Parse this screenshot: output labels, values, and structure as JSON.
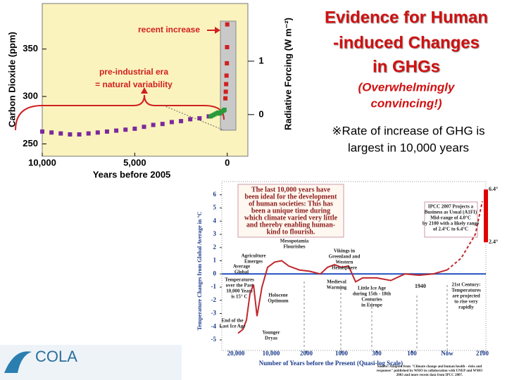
{
  "slide": {
    "title_lines": [
      "Evidence for Human",
      "-induced Changes",
      "in GHGs"
    ],
    "subtitle_lines": [
      "(Overwhelmingly",
      "convincing!)"
    ],
    "note_lines": [
      "※Rate of increase of GHG is",
      "largest in 10,000 years"
    ],
    "logo": "COLA"
  },
  "chart_data": [
    {
      "type": "scatter",
      "xlabel": "Years before 2005",
      "ylabel": "Carbon Dioxide (ppm)",
      "y2label": "Radiative Forcing (W m⁻²)",
      "xlim": [
        10000,
        -1000
      ],
      "ylim": [
        237,
        398
      ],
      "y2lim": [
        -0.78,
        2.08
      ],
      "xticks": [
        {
          "value": 10000,
          "label": "10,000"
        },
        {
          "value": 5000,
          "label": "5,000"
        },
        0
      ],
      "yticks": [
        250,
        300,
        350
      ],
      "y2ticks": [
        0,
        1
      ],
      "annotations": [
        [
          "recent increase"
        ],
        [
          "pre-industrial era",
          "= natural variability"
        ]
      ],
      "series": [
        {
          "color": "#7a2a9a",
          "x": [
            10000,
            9500,
            9000,
            8500,
            8000,
            7500,
            7000,
            6500,
            6000,
            5500,
            5000,
            4500,
            4000,
            3500,
            3000,
            2500,
            2000,
            1500,
            1000
          ],
          "values": [
            263,
            262,
            261,
            260,
            260,
            261,
            262,
            263,
            264,
            265,
            266,
            268,
            270,
            271,
            273,
            274,
            276,
            277,
            279
          ]
        },
        {
          "color": "#2a9a3a",
          "x": [
            900,
            800,
            700,
            600,
            500,
            400,
            300,
            200,
            150
          ],
          "values": [
            279,
            280,
            281,
            282,
            283,
            282,
            284,
            285,
            286
          ]
        },
        {
          "color": "#d02020",
          "x": [
            100,
            80,
            60,
            40,
            20,
            10,
            0
          ],
          "values": [
            298,
            305,
            313,
            322,
            335,
            352,
            376
          ]
        }
      ]
    },
    {
      "type": "line",
      "xlabel": "Number of Years before the Present (Quasi-log Scale)",
      "ylabel": "Temperature Changes from Global Average in °C",
      "xlim": [
        -0.4,
        7.1
      ],
      "ylim": [
        -5.8,
        7
      ],
      "xticks": [
        {
          "value": 0,
          "label": "20,000"
        },
        {
          "value": 1,
          "label": "10,000"
        },
        {
          "value": 2,
          "label": "2000"
        },
        {
          "value": 3,
          "label": "1000"
        },
        {
          "value": 4,
          "label": "300"
        },
        {
          "value": 5,
          "label": "100"
        },
        {
          "value": 6,
          "label": "Now"
        },
        {
          "value": 7,
          "label": "2100"
        }
      ],
      "yticks": [
        -5,
        -4,
        -3,
        -2,
        -1,
        0,
        1,
        2,
        3,
        4,
        5,
        6
      ],
      "series": [
        {
          "color": "#c0282d",
          "dashed": false,
          "x": [
            0.06,
            0.2,
            0.3,
            0.4,
            0.5,
            0.6,
            0.74,
            0.9,
            1.1,
            1.3,
            1.5,
            1.8,
            2.1,
            2.4,
            2.6,
            2.8,
            3.0,
            3.2,
            3.4,
            3.6,
            4.0,
            4.4,
            4.8,
            5.2,
            5.6,
            6.0
          ],
          "values": [
            -4.5,
            -4.2,
            -3.5,
            -1.5,
            -0.8,
            -3.2,
            -1.0,
            0.5,
            0.9,
            1.0,
            0.6,
            0.3,
            0.2,
            0.0,
            0.5,
            0.7,
            0.5,
            0.6,
            -0.6,
            -0.3,
            -0.3,
            -0.5,
            0.0,
            -0.1,
            0.0,
            0.3
          ]
        },
        {
          "color": "#c0282d",
          "dashed": true,
          "x": [
            6.0,
            6.4,
            6.8,
            7.0
          ],
          "values": [
            0.3,
            1.2,
            3.0,
            5.5
          ]
        }
      ],
      "range": {
        "x": 7.1,
        "values": [
          2.4,
          6.4
        ],
        "value_labels": [
          "2.4°",
          "6.4°"
        ],
        "color": "#e00000"
      },
      "annotations": [
        [
          "The last 10,000 years have",
          "been ideal for the development",
          "of human societies: This has",
          "been a unique time during",
          "which climate varied very little",
          "and thereby enabling human-",
          "kind to flourish."
        ],
        [
          "IPCC 2007 Projects a",
          "Business as Usual (A1FI)",
          "Mid-range of 4.0°C",
          "by 2100 with a likely range",
          "of 2.4°C to 6.4°C"
        ],
        [
          "Mesopotamia",
          "Flourishes"
        ],
        [
          "Agriculture",
          "Emerges"
        ],
        [
          "Vikings in",
          "Greenland and",
          "Western",
          "Hemisphere"
        ],
        [
          "Average",
          "Global"
        ],
        [
          "Temperatures",
          "over the Past",
          "10,000 Years",
          "is 15° C"
        ],
        [
          "Holocene",
          "Optimum"
        ],
        [
          "Medieval",
          "Warming"
        ],
        [
          "Little Ice Age",
          "during 15th - 18th",
          "Centuries",
          "in Europe"
        ],
        [
          "1940"
        ],
        [
          "21st Century:",
          "Temperatures",
          "are projected",
          "to rise very",
          "rapidly"
        ],
        [
          "End of the",
          "Last Ice Age"
        ],
        [
          "Younger",
          "Dryas"
        ],
        [
          "Source: Adapted from \"Climate change and human health - risks and",
          "responses\" published by WHO in collaboration with UNEP and WMO",
          "2003 and more recent data from IPCC 2007."
        ]
      ]
    }
  ]
}
